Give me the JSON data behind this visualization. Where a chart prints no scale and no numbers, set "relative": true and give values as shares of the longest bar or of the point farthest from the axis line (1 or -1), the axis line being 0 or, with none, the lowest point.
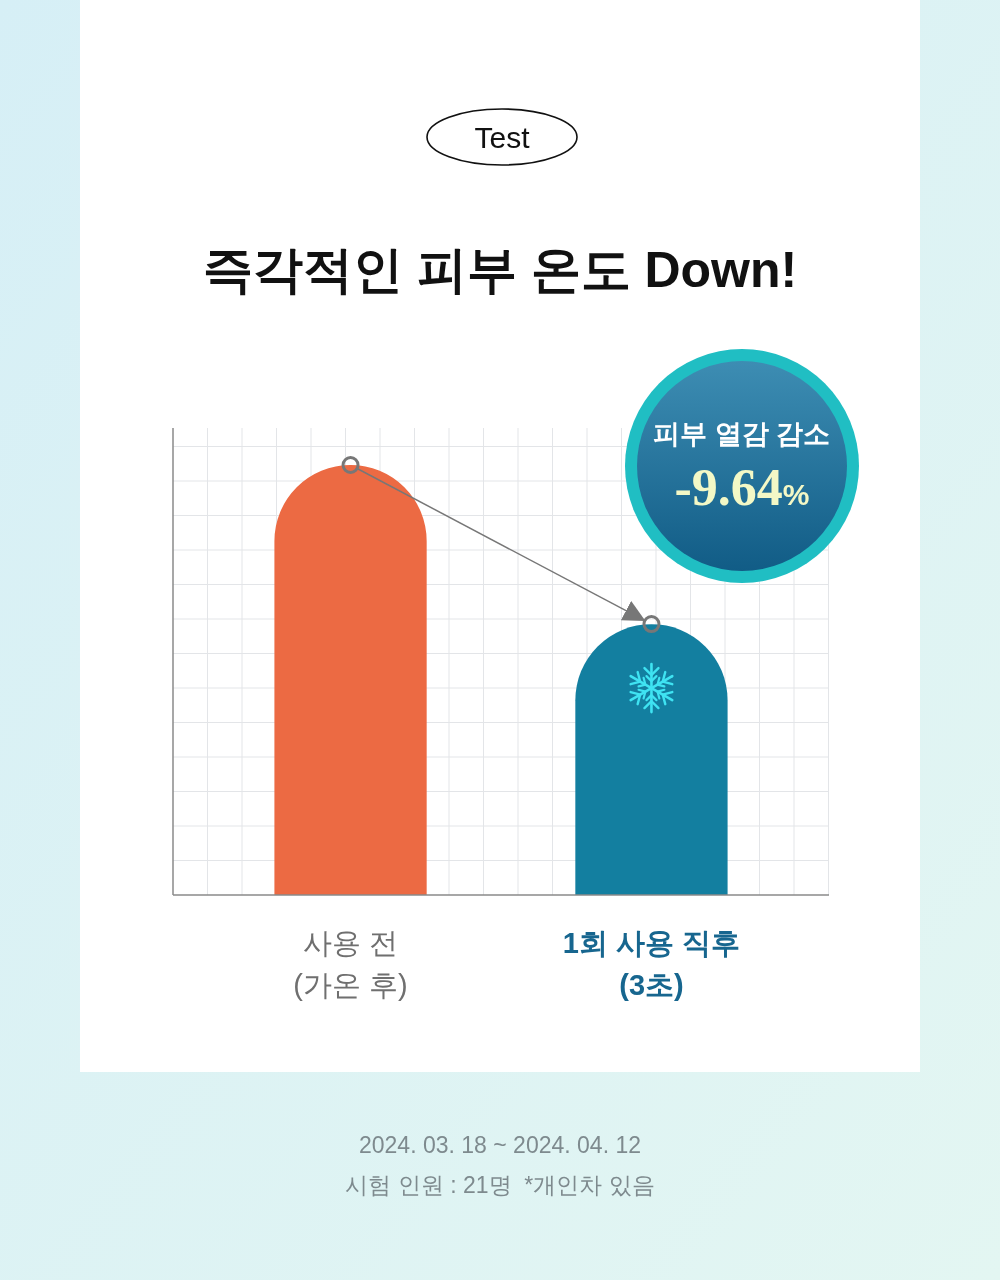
{
  "chart_data": {
    "type": "bar",
    "title": "즉각적인 피부 온도 Down!",
    "categories": [
      "사용 전\n(가온 후)",
      "1회 사용 직후\n(3초)"
    ],
    "values": [
      1,
      0.63
    ],
    "colors": [
      "#ec6a43",
      "#137fa0"
    ],
    "relative": true,
    "grid": true,
    "annotations": [
      "Test",
      "피부 열감 감소",
      "-9.64%",
      "2024. 03. 18 ~ 2024. 04. 12",
      "시험 인원 : 21명  *개인차 있음"
    ]
  }
}
